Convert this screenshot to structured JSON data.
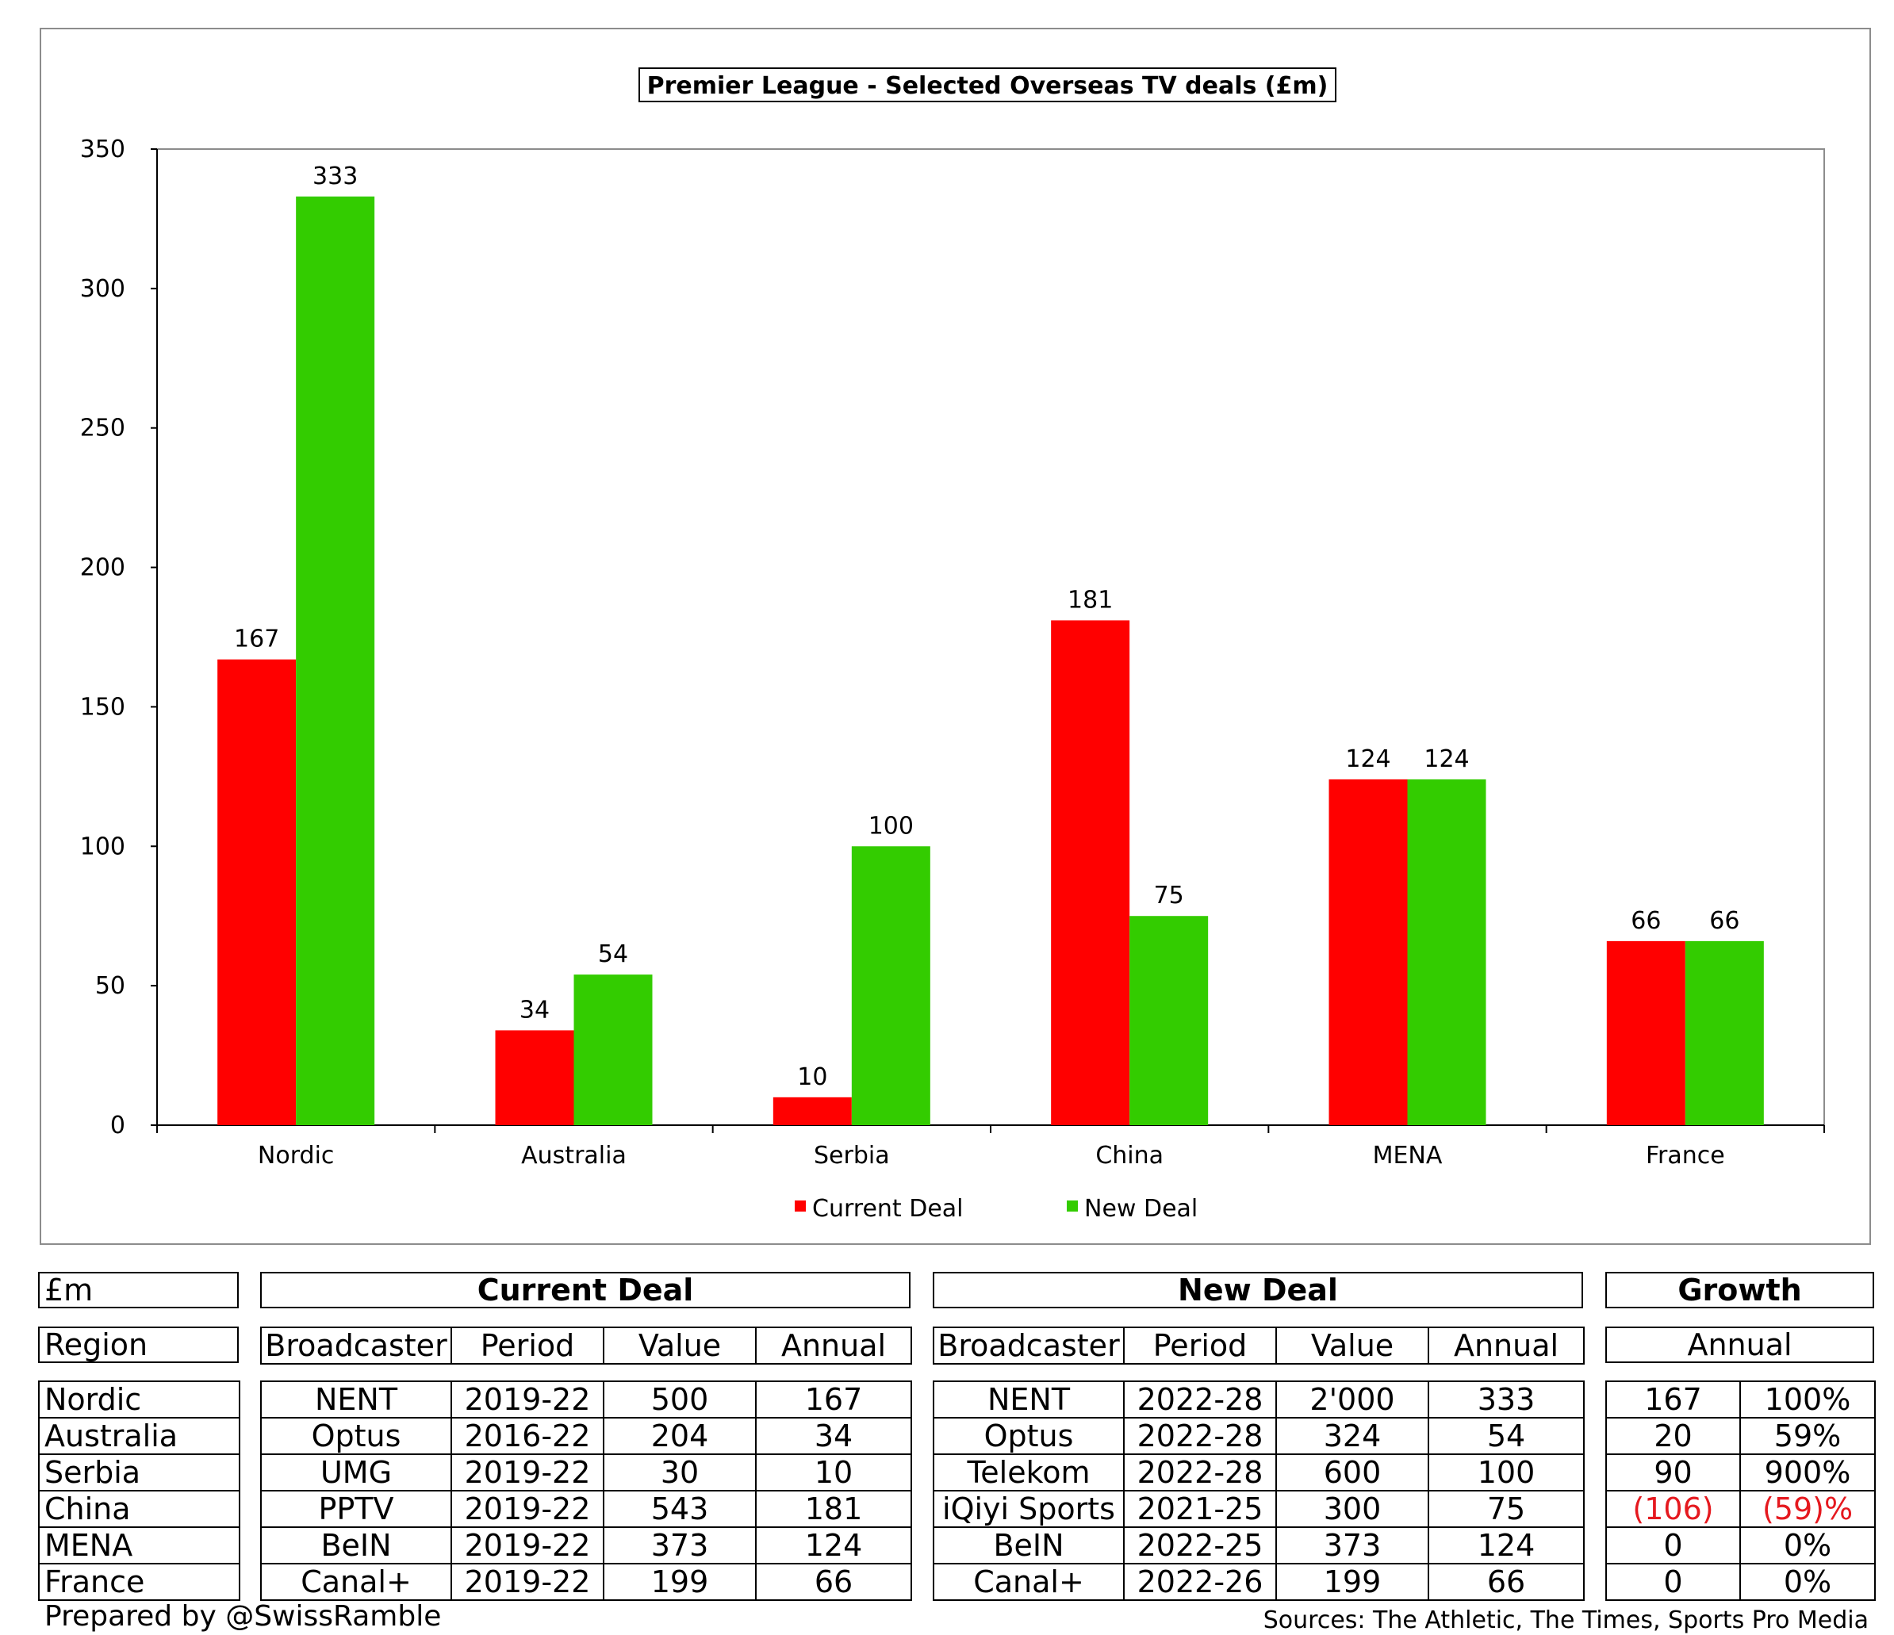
{
  "chart_data": {
    "type": "bar",
    "title": "Premier League - Selected Overseas TV deals (£m)",
    "categories": [
      "Nordic",
      "Australia",
      "Serbia",
      "China",
      "MENA",
      "France"
    ],
    "series": [
      {
        "name": "Current Deal",
        "values": [
          167,
          34,
          10,
          181,
          124,
          66
        ]
      },
      {
        "name": "New Deal",
        "values": [
          333,
          54,
          100,
          75,
          124,
          66
        ]
      }
    ],
    "ylim": [
      0,
      350
    ],
    "yticks": [
      0,
      50,
      100,
      150,
      200,
      250,
      300,
      350
    ],
    "xlabel": "",
    "ylabel": "",
    "grid": false,
    "legend_position": "bottom-center"
  },
  "colors": {
    "current": "#ff0000",
    "new": "#33cc00",
    "negative": "#e5191f"
  },
  "table": {
    "unit_label": "£m",
    "region_header": "Region",
    "current_header": "Current Deal",
    "new_header": "New Deal",
    "growth_header": "Growth",
    "growth_subheader": "Annual",
    "columns": [
      "Broadcaster",
      "Period",
      "Value",
      "Annual"
    ],
    "regions": [
      "Nordic",
      "Australia",
      "Serbia",
      "China",
      "MENA",
      "France"
    ],
    "current": [
      [
        "NENT",
        "2019-22",
        "500",
        "167"
      ],
      [
        "Optus",
        "2016-22",
        "204",
        "34"
      ],
      [
        "UMG",
        "2019-22",
        "30",
        "10"
      ],
      [
        "PPTV",
        "2019-22",
        "543",
        "181"
      ],
      [
        "BeIN",
        "2019-22",
        "373",
        "124"
      ],
      [
        "Canal+",
        "2019-22",
        "199",
        "66"
      ]
    ],
    "new": [
      [
        "NENT",
        "2022-28",
        "2'000",
        "333"
      ],
      [
        "Optus",
        "2022-28",
        "324",
        "54"
      ],
      [
        "Telekom",
        "2022-28",
        "600",
        "100"
      ],
      [
        "iQiyi Sports",
        "2021-25",
        "300",
        "75"
      ],
      [
        "BeIN",
        "2022-25",
        "373",
        "124"
      ],
      [
        "Canal+",
        "2022-26",
        "199",
        "66"
      ]
    ],
    "growth": [
      [
        "167",
        "100%"
      ],
      [
        "20",
        "59%"
      ],
      [
        "90",
        "900%"
      ],
      [
        "(106)",
        "(59)%"
      ],
      [
        "0",
        "0%"
      ],
      [
        "0",
        "0%"
      ]
    ]
  },
  "footer": {
    "prepared_by": "Prepared by @SwissRamble",
    "sources": "Sources: The Athletic, The Times, Sports Pro Media"
  }
}
